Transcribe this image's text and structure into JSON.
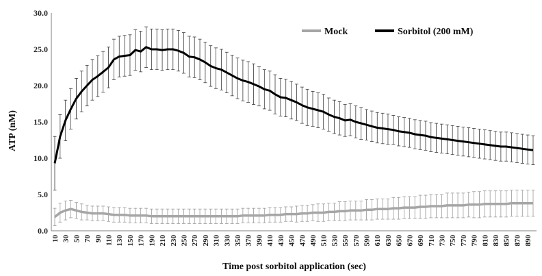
{
  "chart_data": {
    "type": "line",
    "title": "",
    "xlabel": "Time post sorbitol application (sec)",
    "ylabel": "ATP (nM)",
    "ylim": [
      0,
      30
    ],
    "yticks": [
      "0.0",
      "5.0",
      "10.0",
      "15.0",
      "20.0",
      "25.0",
      "30.0"
    ],
    "x": [
      10,
      20,
      30,
      40,
      50,
      60,
      70,
      80,
      90,
      100,
      110,
      120,
      130,
      140,
      150,
      160,
      170,
      180,
      190,
      200,
      210,
      220,
      230,
      240,
      250,
      260,
      270,
      280,
      290,
      300,
      310,
      320,
      330,
      340,
      350,
      360,
      370,
      380,
      390,
      400,
      410,
      420,
      430,
      440,
      450,
      460,
      470,
      480,
      490,
      500,
      510,
      520,
      530,
      540,
      550,
      560,
      570,
      580,
      590,
      600,
      610,
      620,
      630,
      640,
      650,
      660,
      670,
      680,
      690,
      700,
      710,
      720,
      730,
      740,
      750,
      760,
      770,
      780,
      790,
      800,
      810,
      820,
      830,
      840,
      850,
      860,
      870,
      880,
      890,
      900
    ],
    "xtick_labels": [
      "10",
      "30",
      "50",
      "70",
      "90",
      "110",
      "130",
      "150",
      "170",
      "190",
      "210",
      "230",
      "250",
      "270",
      "290",
      "310",
      "330",
      "350",
      "370",
      "390",
      "410",
      "430",
      "450",
      "470",
      "490",
      "510",
      "530",
      "550",
      "570",
      "590",
      "610",
      "630",
      "650",
      "670",
      "690",
      "710",
      "730",
      "750",
      "770",
      "790",
      "810",
      "830",
      "850",
      "870",
      "890"
    ],
    "legend_position": "top-right",
    "grid": false,
    "series": [
      {
        "name": "Mock",
        "color": "#a6a6a6",
        "values": [
          1.9,
          2.5,
          2.8,
          3.0,
          2.8,
          2.6,
          2.5,
          2.4,
          2.4,
          2.4,
          2.3,
          2.2,
          2.2,
          2.2,
          2.1,
          2.1,
          2.1,
          2.1,
          2.0,
          2.0,
          2.0,
          2.0,
          2.0,
          2.0,
          2.0,
          2.0,
          2.0,
          2.0,
          2.0,
          2.0,
          2.0,
          2.0,
          2.0,
          2.0,
          2.0,
          2.1,
          2.1,
          2.1,
          2.1,
          2.1,
          2.2,
          2.2,
          2.2,
          2.3,
          2.3,
          2.3,
          2.4,
          2.4,
          2.5,
          2.5,
          2.5,
          2.6,
          2.6,
          2.7,
          2.7,
          2.8,
          2.8,
          2.8,
          2.9,
          2.9,
          3.0,
          3.0,
          3.0,
          3.1,
          3.1,
          3.2,
          3.2,
          3.2,
          3.3,
          3.3,
          3.4,
          3.4,
          3.4,
          3.5,
          3.5,
          3.5,
          3.5,
          3.6,
          3.6,
          3.6,
          3.7,
          3.7,
          3.7,
          3.7,
          3.7,
          3.8,
          3.8,
          3.8,
          3.8,
          3.8
        ],
        "errors": [
          1.2,
          1.3,
          1.3,
          1.2,
          1.1,
          1.1,
          1.0,
          1.0,
          1.0,
          1.0,
          1.0,
          1.0,
          1.0,
          1.0,
          1.0,
          1.0,
          1.0,
          1.0,
          1.0,
          1.0,
          1.0,
          1.0,
          1.0,
          1.0,
          1.0,
          1.0,
          1.0,
          1.0,
          1.0,
          1.0,
          1.0,
          1.0,
          1.0,
          1.0,
          1.0,
          1.0,
          1.0,
          1.0,
          1.0,
          1.0,
          1.0,
          1.0,
          1.0,
          1.0,
          1.0,
          1.1,
          1.1,
          1.1,
          1.1,
          1.2,
          1.2,
          1.2,
          1.2,
          1.3,
          1.3,
          1.3,
          1.3,
          1.3,
          1.4,
          1.4,
          1.4,
          1.4,
          1.4,
          1.5,
          1.5,
          1.5,
          1.5,
          1.5,
          1.6,
          1.6,
          1.6,
          1.6,
          1.6,
          1.7,
          1.7,
          1.7,
          1.7,
          1.7,
          1.8,
          1.8,
          1.8,
          1.8,
          1.8,
          1.8,
          1.8,
          1.8,
          1.8,
          1.8,
          1.8,
          1.8
        ]
      },
      {
        "name": "Sorbitol (200 mM)",
        "color": "#000000",
        "values": [
          9.3,
          13.0,
          15.2,
          16.8,
          18.2,
          19.2,
          20.0,
          20.8,
          21.3,
          21.9,
          22.5,
          23.6,
          24.0,
          24.1,
          24.2,
          24.9,
          24.7,
          25.3,
          25.0,
          25.0,
          24.9,
          25.0,
          25.0,
          24.8,
          24.5,
          24.0,
          23.9,
          23.6,
          23.2,
          22.7,
          22.4,
          22.2,
          21.8,
          21.4,
          21.0,
          20.7,
          20.5,
          20.2,
          19.9,
          19.5,
          19.3,
          18.8,
          18.4,
          18.3,
          18.0,
          17.7,
          17.3,
          17.0,
          16.8,
          16.6,
          16.4,
          16.0,
          15.7,
          15.5,
          15.2,
          15.3,
          15.0,
          14.8,
          14.6,
          14.4,
          14.2,
          14.1,
          14.0,
          13.9,
          13.7,
          13.6,
          13.5,
          13.3,
          13.2,
          13.1,
          12.9,
          12.8,
          12.7,
          12.6,
          12.5,
          12.4,
          12.3,
          12.2,
          12.1,
          12.0,
          11.9,
          11.8,
          11.7,
          11.6,
          11.6,
          11.5,
          11.4,
          11.3,
          11.2,
          11.1
        ],
        "errors": [
          3.7,
          3.0,
          2.8,
          2.8,
          2.8,
          2.8,
          2.8,
          2.8,
          2.8,
          2.8,
          2.8,
          2.8,
          2.8,
          2.8,
          2.8,
          2.8,
          2.8,
          2.8,
          2.8,
          2.8,
          2.8,
          2.8,
          2.8,
          2.8,
          2.8,
          2.8,
          2.8,
          2.8,
          2.8,
          2.8,
          2.8,
          2.8,
          2.8,
          2.8,
          2.8,
          2.8,
          2.8,
          2.8,
          2.7,
          2.7,
          2.7,
          2.7,
          2.6,
          2.6,
          2.6,
          2.5,
          2.5,
          2.5,
          2.4,
          2.4,
          2.4,
          2.3,
          2.3,
          2.3,
          2.2,
          2.2,
          2.2,
          2.2,
          2.1,
          2.1,
          2.1,
          2.1,
          2.1,
          2.0,
          2.0,
          2.0,
          2.0,
          2.0,
          2.0,
          2.0,
          2.0,
          2.0,
          2.0,
          2.0,
          2.0,
          2.0,
          2.0,
          2.0,
          2.0,
          2.0,
          2.0,
          2.0,
          2.0,
          2.0,
          2.0,
          2.0,
          2.0,
          2.0,
          2.0,
          2.0
        ]
      }
    ]
  }
}
